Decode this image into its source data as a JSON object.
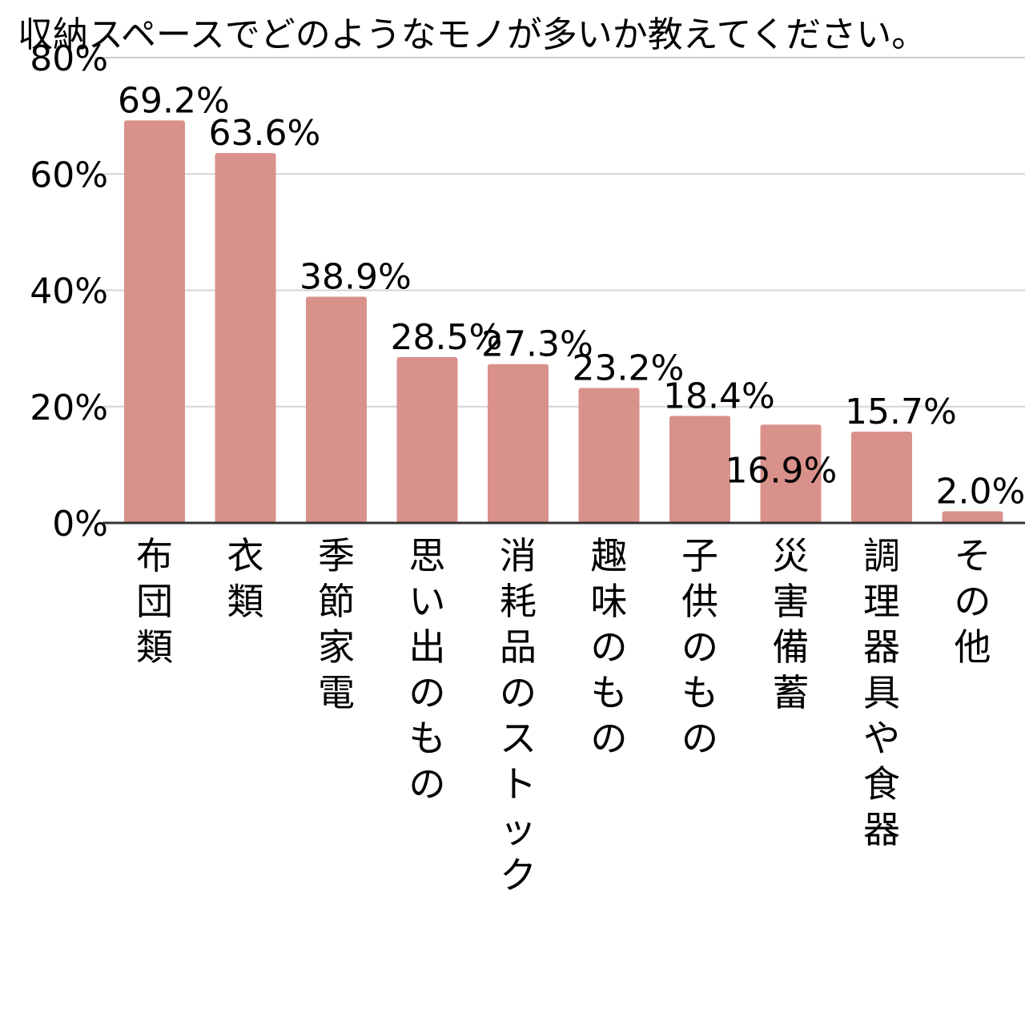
{
  "chart_data": {
    "type": "bar",
    "title": "収納スペースでどのようなモノが多いか教えてください。",
    "xlabel": "",
    "ylabel": "",
    "ylim": [
      0,
      80
    ],
    "grid": true,
    "legend": "none",
    "yticks": [
      "0%",
      "20%",
      "40%",
      "60%",
      "80%"
    ],
    "ytick_values": [
      0,
      20,
      40,
      60,
      80
    ],
    "categories": [
      "布団類",
      "衣類",
      "季節家電",
      "思い出のもの",
      "消耗品のストック",
      "趣味のもの",
      "子供のもの",
      "災害備蓄",
      "調理器具や食器",
      "その他"
    ],
    "values": [
      69.2,
      63.6,
      38.9,
      28.5,
      27.3,
      23.2,
      18.4,
      16.9,
      15.7,
      2.0
    ],
    "data_labels": [
      "69.2%",
      "63.6%",
      "38.9%",
      "28.5%",
      "27.3%",
      "23.2%",
      "18.4%",
      "16.9%",
      "15.7%",
      "2.0%"
    ],
    "colors": {
      "bar": "#d9918b",
      "grid": "#d4d4d4",
      "axis": "#333333",
      "text": "#111111"
    }
  }
}
